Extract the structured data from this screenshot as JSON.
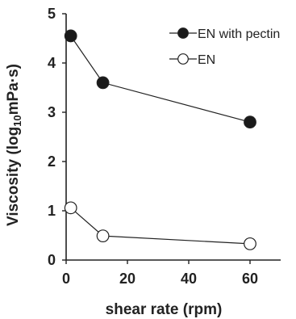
{
  "chart_data": {
    "type": "line",
    "title": "",
    "xlabel": "shear rate (rpm)",
    "ylabel": {
      "prefix": "Viscosity (log",
      "subscript": "10",
      "suffix": "mPa·s)"
    },
    "xlim": [
      0,
      70
    ],
    "ylim": [
      0,
      5
    ],
    "xticks": [
      0,
      20,
      40,
      60
    ],
    "yticks": [
      0,
      1,
      2,
      3,
      4,
      5
    ],
    "grid": false,
    "legend": "top-right",
    "series": [
      {
        "name": "EN with pectin",
        "marker": "filled-circle",
        "x": [
          1.5,
          12,
          60
        ],
        "y": [
          4.55,
          3.6,
          2.8
        ]
      },
      {
        "name": "EN",
        "marker": "open-circle",
        "x": [
          1.5,
          12,
          60
        ],
        "y": [
          1.06,
          0.49,
          0.33
        ]
      }
    ]
  },
  "colors": {
    "axis": "#222222",
    "line": "#222222",
    "marker_fill_filled": "#1a1a1a",
    "marker_fill_open": "#ffffff"
  }
}
